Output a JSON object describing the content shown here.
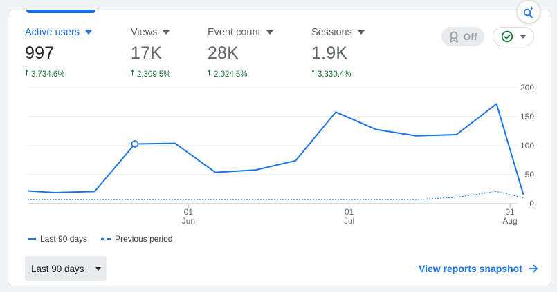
{
  "metrics": [
    {
      "label": "Active users",
      "value": "997",
      "change": "3,734.6%",
      "active": true
    },
    {
      "label": "Views",
      "value": "17K",
      "change": "2,309.5%",
      "active": false
    },
    {
      "label": "Event count",
      "value": "28K",
      "change": "2,024.5%",
      "active": false
    },
    {
      "label": "Sessions",
      "value": "1.9K",
      "change": "3,330.4%",
      "active": false
    }
  ],
  "controls": {
    "toggle_label": "Off",
    "date_range_label": "Last 90 days",
    "snapshot_link": "View reports snapshot"
  },
  "icons": {
    "insights": "insights-search-sparkle-icon",
    "toggle": "award-ribbon-icon",
    "compare": "check-circle-icon",
    "snapshot": "arrow-right-icon"
  },
  "colors": {
    "accent": "#1a73e8",
    "positive": "#137333",
    "muted": "#5f6368"
  },
  "chart_data": {
    "type": "line",
    "y_ticks": [
      "200",
      "150",
      "100",
      "50",
      "0"
    ],
    "ylim": [
      0,
      200
    ],
    "x_ticks": [
      {
        "day": "01",
        "month": "Jun",
        "index": 12
      },
      {
        "day": "01",
        "month": "Jul",
        "index": 24
      },
      {
        "day": "01",
        "month": "Aug",
        "index": 36
      }
    ],
    "x_count": 37,
    "legend": [
      "Last 90 days",
      "Previous period"
    ],
    "series": [
      {
        "name": "Last 90 days",
        "style": "solid",
        "points": [
          [
            0,
            22
          ],
          [
            2,
            19
          ],
          [
            5,
            21
          ],
          [
            8,
            103
          ],
          [
            11,
            104
          ],
          [
            14,
            54
          ],
          [
            17,
            58
          ],
          [
            20,
            74
          ],
          [
            23,
            158
          ],
          [
            26,
            128
          ],
          [
            29,
            117
          ],
          [
            32,
            119
          ],
          [
            35,
            172
          ],
          [
            37,
            16
          ]
        ],
        "highlight_index": 3
      },
      {
        "name": "Previous period",
        "style": "dashed",
        "points": [
          [
            0,
            7
          ],
          [
            29,
            7
          ],
          [
            32,
            11
          ],
          [
            35,
            21
          ],
          [
            37,
            10
          ]
        ]
      }
    ]
  }
}
